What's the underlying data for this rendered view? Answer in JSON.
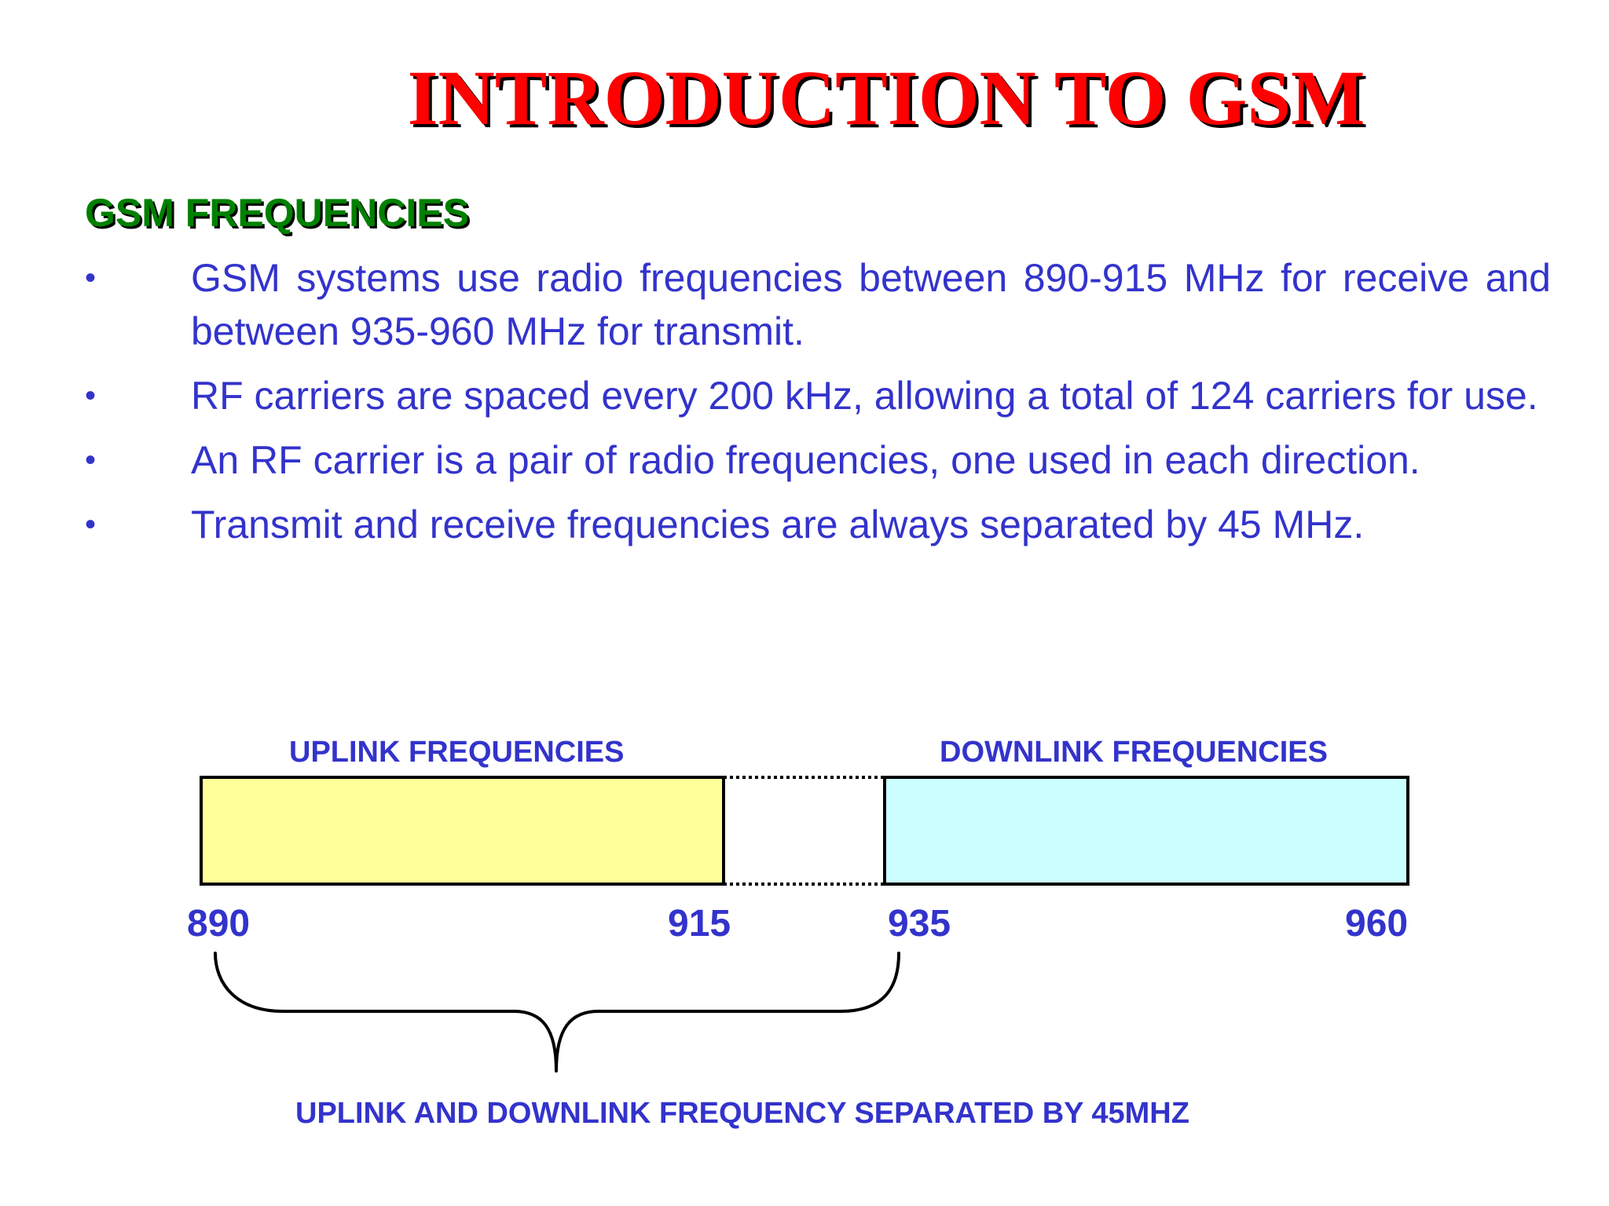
{
  "slide": {
    "title": "INTRODUCTION TO GSM",
    "heading": "GSM FREQUENCIES",
    "bullet_symbol": "•",
    "bullets": [
      "GSM systems use radio frequencies between 890-915 MHz for receive and between 935-960 MHz for transmit.",
      "RF carriers are spaced every 200 kHz, allowing a total of 124 carriers for use.",
      "An RF carrier is a pair of radio frequencies, one used in each direction.",
      "Transmit and receive frequencies are always separated by 45 MHz."
    ]
  },
  "diagram": {
    "uplink": {
      "label": "UPLINK FREQUENCIES",
      "start": "890",
      "end": "915",
      "fill": "#ffff99"
    },
    "downlink": {
      "label": "DOWNLINK FREQUENCIES",
      "start": "935",
      "end": "960",
      "fill": "#ccffff"
    },
    "gap_style": "dotted",
    "separation_note": "UPLINK AND DOWNLINK FREQUENCY SEPARATED BY 45MHZ"
  },
  "colors": {
    "title": "#ff0000",
    "heading": "#008000",
    "body_text": "#3333cc",
    "outline": "#000000"
  }
}
